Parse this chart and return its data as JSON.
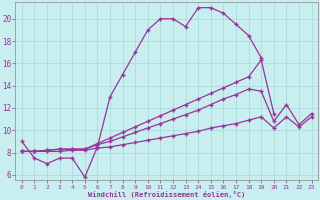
{
  "background_color": "#c8eef0",
  "grid_color": "#aadddd",
  "line_color": "#993399",
  "xlabel": "Windchill (Refroidissement éolien,°C)",
  "xlim": [
    -0.5,
    23.5
  ],
  "ylim": [
    5.5,
    21.5
  ],
  "xticks": [
    0,
    1,
    2,
    3,
    4,
    5,
    6,
    7,
    8,
    9,
    10,
    11,
    12,
    13,
    14,
    15,
    16,
    17,
    18,
    19,
    20,
    21,
    22,
    23
  ],
  "yticks": [
    6,
    8,
    10,
    12,
    14,
    16,
    18,
    20
  ],
  "line1_x": [
    0,
    1,
    2,
    3,
    4,
    5,
    6,
    7,
    8,
    9,
    10,
    11,
    12,
    13,
    14,
    15,
    16,
    17,
    18,
    19
  ],
  "line1_y": [
    9.0,
    7.5,
    7.0,
    7.5,
    7.5,
    5.8,
    8.5,
    13.0,
    15.0,
    17.0,
    19.0,
    20.0,
    20.0,
    19.3,
    21.0,
    21.0,
    20.5,
    19.5,
    18.5,
    16.5
  ],
  "line2_x": [
    0,
    1,
    2,
    3,
    4,
    5,
    6,
    7,
    8,
    9,
    10,
    11,
    12,
    13,
    14,
    15,
    16,
    17,
    18,
    19,
    20,
    21,
    22,
    23
  ],
  "line2_y": [
    8.1,
    8.1,
    8.1,
    8.1,
    8.2,
    8.2,
    8.4,
    8.5,
    8.7,
    8.9,
    9.1,
    9.3,
    9.5,
    9.7,
    9.9,
    10.2,
    10.4,
    10.6,
    10.9,
    11.2,
    10.2,
    11.2,
    10.3,
    11.2
  ],
  "line3_x": [
    0,
    1,
    2,
    3,
    4,
    5,
    6,
    7,
    8,
    9,
    10,
    11,
    12,
    13,
    14,
    15,
    16,
    17,
    18,
    19,
    20,
    21,
    22,
    23
  ],
  "line3_y": [
    8.1,
    8.1,
    8.2,
    8.3,
    8.3,
    8.3,
    8.7,
    9.0,
    9.4,
    9.8,
    10.2,
    10.6,
    11.0,
    11.4,
    11.8,
    12.3,
    12.8,
    13.2,
    13.7,
    13.5,
    10.8,
    12.3,
    10.5,
    11.5
  ],
  "line4_x": [
    0,
    1,
    2,
    3,
    4,
    5,
    6,
    7,
    8,
    9,
    10,
    11,
    12,
    13,
    14,
    15,
    16,
    17,
    18,
    19,
    20
  ],
  "line4_y": [
    8.1,
    8.1,
    8.2,
    8.3,
    8.3,
    8.3,
    8.8,
    9.3,
    9.8,
    10.3,
    10.8,
    11.3,
    11.8,
    12.3,
    12.8,
    13.3,
    13.8,
    14.3,
    14.8,
    16.3,
    11.5
  ]
}
